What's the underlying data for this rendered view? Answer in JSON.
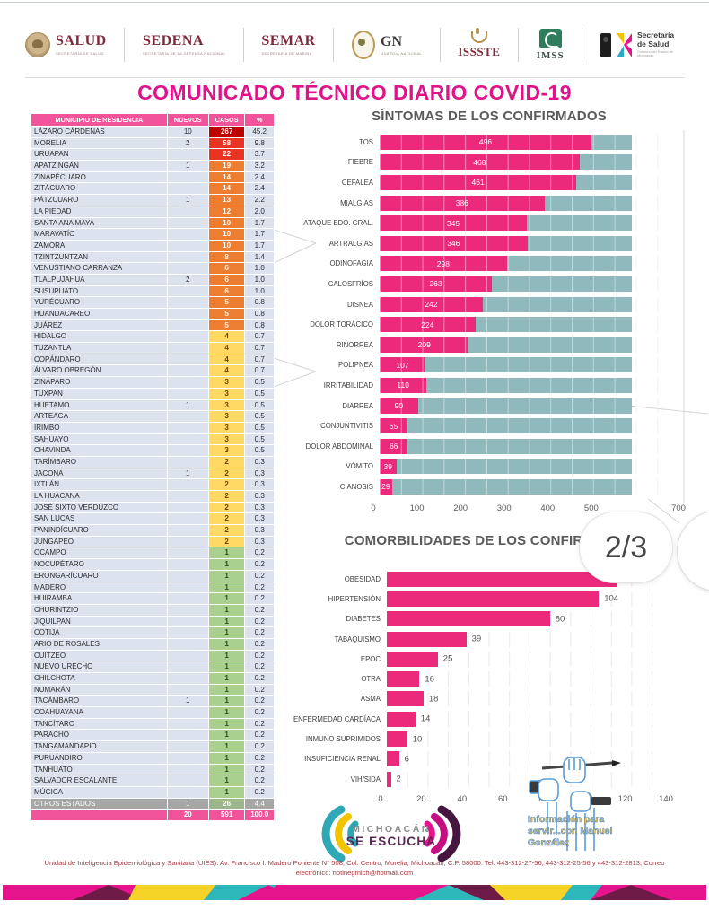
{
  "viewer": {
    "page_indicator": "2/3"
  },
  "title": "COMUNICADO TÉCNICO DIARIO COVID-19",
  "header": {
    "logos": [
      {
        "name": "SALUD",
        "sub": "SECRETARÍA DE SALUD"
      },
      {
        "name": "SEDENA",
        "sub": "SECRETARÍA DE LA DEFENSA NACIONAL"
      },
      {
        "name": "SEMAR",
        "sub": "SECRETARÍA DE MARINA"
      },
      {
        "name": "GN",
        "sub": "GUARDIA NACIONAL"
      },
      {
        "name": "ISSSTE",
        "sub": ""
      },
      {
        "name": "IMSS",
        "sub": ""
      },
      {
        "name": "Secretaría de Salud",
        "sub": "Gobierno del Estado de Michoacán"
      }
    ]
  },
  "table": {
    "headers": [
      "MUNICIPIO DE RESIDENCIA",
      "NUEVOS",
      "CASOS",
      "%"
    ],
    "rows": [
      [
        "LÁZARO CÁRDENAS",
        "10",
        "267",
        "45.2"
      ],
      [
        "MORELIA",
        "2",
        "58",
        "9.8"
      ],
      [
        "URUAPAN",
        "",
        "22",
        "3.7"
      ],
      [
        "APATZINGÁN",
        "1",
        "19",
        "3.2"
      ],
      [
        "ZINAPÉCUARO",
        "",
        "14",
        "2.4"
      ],
      [
        "ZITÁCUARO",
        "",
        "14",
        "2.4"
      ],
      [
        "PÁTZCUARO",
        "1",
        "13",
        "2.2"
      ],
      [
        "LA PIEDAD",
        "",
        "12",
        "2.0"
      ],
      [
        "SANTA ANA MAYA",
        "",
        "10",
        "1.7"
      ],
      [
        "MARAVATÍO",
        "",
        "10",
        "1.7"
      ],
      [
        "ZAMORA",
        "",
        "10",
        "1.7"
      ],
      [
        "TZINTZUNTZAN",
        "",
        "8",
        "1.4"
      ],
      [
        "VENUSTIANO CARRANZA",
        "",
        "6",
        "1.0"
      ],
      [
        "TLALPUJAHUA",
        "2",
        "6",
        "1.0"
      ],
      [
        "SUSUPUATO",
        "",
        "6",
        "1.0"
      ],
      [
        "YURÉCUARO",
        "",
        "5",
        "0.8"
      ],
      [
        "HUANDACAREO",
        "",
        "5",
        "0.8"
      ],
      [
        "JUÁREZ",
        "",
        "5",
        "0.8"
      ],
      [
        "HIDALGO",
        "",
        "4",
        "0.7"
      ],
      [
        "TUZANTLA",
        "",
        "4",
        "0.7"
      ],
      [
        "COPÁNDARO",
        "",
        "4",
        "0.7"
      ],
      [
        "ÁLVARO OBREGÓN",
        "",
        "4",
        "0.7"
      ],
      [
        "ZINÁPARO",
        "",
        "3",
        "0.5"
      ],
      [
        "TUXPAN",
        "",
        "3",
        "0.5"
      ],
      [
        "HUETAMO",
        "1",
        "3",
        "0.5"
      ],
      [
        "ARTEAGA",
        "",
        "3",
        "0.5"
      ],
      [
        "IRIMBO",
        "",
        "3",
        "0.5"
      ],
      [
        "SAHUAYO",
        "",
        "3",
        "0.5"
      ],
      [
        "CHAVINDA",
        "",
        "3",
        "0.5"
      ],
      [
        "TARÍMBARO",
        "",
        "2",
        "0.3"
      ],
      [
        "JACONA",
        "1",
        "2",
        "0.3"
      ],
      [
        "IXTLÁN",
        "",
        "2",
        "0.3"
      ],
      [
        "LA HUACANA",
        "",
        "2",
        "0.3"
      ],
      [
        "JOSÉ SIXTO VERDUZCO",
        "",
        "2",
        "0.3"
      ],
      [
        "SAN LUCAS",
        "",
        "2",
        "0.3"
      ],
      [
        "PANINDÍCUARO",
        "",
        "2",
        "0.3"
      ],
      [
        "JUNGAPEO",
        "",
        "2",
        "0.3"
      ],
      [
        "OCAMPO",
        "",
        "1",
        "0.2"
      ],
      [
        "NOCUPÉTARO",
        "",
        "1",
        "0.2"
      ],
      [
        "ERONGARÍCUARO",
        "",
        "1",
        "0.2"
      ],
      [
        "MADERO",
        "",
        "1",
        "0.2"
      ],
      [
        "HUIRAMBA",
        "",
        "1",
        "0.2"
      ],
      [
        "CHURINTZIO",
        "",
        "1",
        "0.2"
      ],
      [
        "JIQUILPAN",
        "",
        "1",
        "0.2"
      ],
      [
        "COTIJA",
        "",
        "1",
        "0.2"
      ],
      [
        "ARIO DE ROSALES",
        "",
        "1",
        "0.2"
      ],
      [
        "CUITZEO",
        "",
        "1",
        "0.2"
      ],
      [
        "NUEVO URECHO",
        "",
        "1",
        "0.2"
      ],
      [
        "CHILCHOTA",
        "",
        "1",
        "0.2"
      ],
      [
        "NUMARÁN",
        "",
        "1",
        "0.2"
      ],
      [
        "TACÁMBARO",
        "1",
        "1",
        "0.2"
      ],
      [
        "COAHUAYANA",
        "",
        "1",
        "0.2"
      ],
      [
        "TANCÍTARO",
        "",
        "1",
        "0.2"
      ],
      [
        "PARACHO",
        "",
        "1",
        "0.2"
      ],
      [
        "TANGAMANDAPIO",
        "",
        "1",
        "0.2"
      ],
      [
        "PURUÁNDIRO",
        "",
        "1",
        "0.2"
      ],
      [
        "TANHUATO",
        "",
        "1",
        "0.2"
      ],
      [
        "SALVADOR ESCALANTE",
        "",
        "1",
        "0.2"
      ],
      [
        "MÚGICA",
        "",
        "1",
        "0.2"
      ]
    ],
    "other_states_row": [
      "OTROS ESTADOS",
      "1",
      "26",
      "4.4"
    ],
    "total_row": [
      "",
      "20",
      "591",
      "100.0"
    ]
  },
  "chart_data": [
    {
      "type": "bar",
      "orientation": "horizontal",
      "title": "SÍNTOMAS DE LOS CONFIRMADOS",
      "stacked_total": 591,
      "xlim": [
        0,
        700
      ],
      "x_ticks": [
        0,
        100,
        200,
        300,
        400,
        500,
        600,
        700
      ],
      "x_tick_labels": [
        "0",
        "100",
        "200",
        "300",
        "400",
        "500",
        "",
        "700"
      ],
      "grid": true,
      "legend": "none",
      "categories": [
        "TOS",
        "FIEBRE",
        "CEFALEA",
        "MIALGIAS",
        "ATAQUE EDO. GRAL.",
        "ARTRALGIAS",
        "ODINOFAGIA",
        "CALOSFRÍOS",
        "DISNEA",
        "DOLOR TORÁCICO",
        "RINORREA",
        "POLIPNEA",
        "IRRITABILIDAD",
        "DIARREA",
        "CONJUNTIVITIS",
        "DOLOR ABDOMINAL",
        "VÓMITO",
        "CIANOSIS"
      ],
      "values": [
        496,
        468,
        461,
        386,
        345,
        346,
        298,
        263,
        242,
        224,
        209,
        107,
        110,
        90,
        65,
        66,
        39,
        29
      ],
      "value_color": "#EC2A7C",
      "remainder_color": "#8FB9BD"
    },
    {
      "type": "bar",
      "orientation": "horizontal",
      "title": "COMORBILIDADES DE LOS CONFIRMADOS",
      "xlim": [
        0,
        140
      ],
      "x_ticks": [
        0,
        20,
        40,
        60,
        80,
        100,
        120,
        140
      ],
      "x_tick_labels": [
        "0",
        "20",
        "40",
        "60",
        "80",
        "100",
        "120",
        "140"
      ],
      "grid": true,
      "legend": "none",
      "categories": [
        "OBESIDAD",
        "HIPERTENSIÓN",
        "DIABETES",
        "TABAQUISMO",
        "EPOC",
        "OTRA",
        "ASMA",
        "ENFERMEDAD CARDÍACA",
        "INMUNO SUPRIMIDOS",
        "INSUFICIENCIA RENAL",
        "VIH/SIDA"
      ],
      "values": [
        113,
        104,
        80,
        39,
        25,
        16,
        18,
        14,
        10,
        6,
        2
      ],
      "value_labels": [
        "",
        "104",
        "80",
        "39",
        "25",
        "16",
        "18",
        "14",
        "10",
        "6",
        "2"
      ],
      "bar_color": "#EC2A7C"
    }
  ],
  "watermark": {
    "lines": [
      "Información para",
      "servir...con Manuel",
      "González"
    ]
  },
  "branding": {
    "line1": "MICHOACÁN",
    "line2": "SE ESCUCHA"
  },
  "footer": {
    "line1": "Unidad de Inteligencia Epidemiológica y Sanitaria (UIES). Av. Francisco I. Madero Poniente N° 508, Col. Centro, Morelia, Michoacán, C.P. 58000. Tel. 443-312-27-56, 443-312-25-56 y 443-312-2813, Correo",
    "line2": "electrónico: notinegmich@hotmail.com"
  },
  "colors": {
    "accent_pink": "#EC2A7C",
    "table_header_pink": "#F2549B",
    "teal": "#8FB9BD",
    "title_magenta": "#E0148A",
    "tier_dark_red": "#BE0000",
    "tier_red": "#E93323",
    "tier_orange": "#ED7D31",
    "tier_yellow": "#FFD964",
    "tier_green": "#A9D08E",
    "other_states_gray": "#A6A6A6",
    "footer_maroon": "#A23B40"
  }
}
